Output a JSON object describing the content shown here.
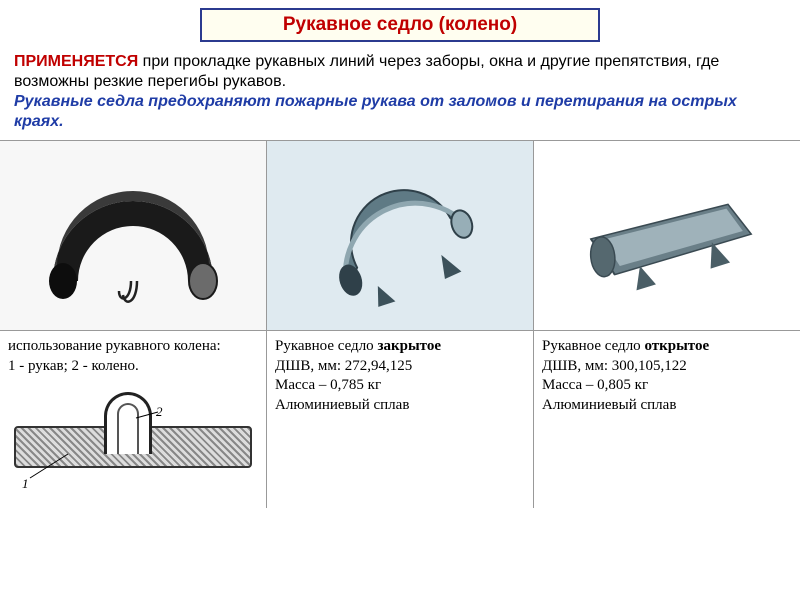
{
  "title": "Рукавное седло (колено)",
  "intro": {
    "applied_label": "ПРИМЕНЯЕТСЯ",
    "applied_text": " при прокладке рукавных линий через заборы, окна и другие препятствия, где возможны резкие перегибы рукавов.",
    "purpose": "Рукавные седла предохраняют пожарные рукава от заломов и перетирания на острых краях."
  },
  "columns": [
    {
      "caption_lines": [
        "использование рукавного колена:",
        "1 - рукав; 2 - колено."
      ],
      "svg": {
        "type": "saddle-black",
        "fill": "#1a1a1a",
        "highlight": "#6b6b6b",
        "bg": "#f7f7f7"
      }
    },
    {
      "caption_lines": [
        "Рукавное седло <b>закрытое</b>",
        "ДШВ, мм: 272,94,125",
        "Масса – 0,785 кг",
        "Алюминиевый сплав"
      ],
      "svg": {
        "type": "saddle-closed",
        "fill": "#5f7a85",
        "edge": "#2f4049",
        "bg": "#dfeaf0"
      }
    },
    {
      "caption_lines": [
        "Рукавное седло <b>открытое</b>",
        "ДШВ, мм: 300,105,122",
        "Масса – 0,805 кг",
        "Алюминиевый сплав"
      ],
      "svg": {
        "type": "saddle-open",
        "fill": "#6a7f88",
        "inner": "#9fb2ba",
        "bg": "#ffffff"
      }
    }
  ],
  "diagram_labels": {
    "one": "1",
    "two": "2"
  },
  "colors": {
    "title_border": "#2b3a8f",
    "title_bg": "#fffef0",
    "title_text": "#c00000",
    "purpose_text": "#1f3ca6",
    "grid_border": "#999999"
  }
}
